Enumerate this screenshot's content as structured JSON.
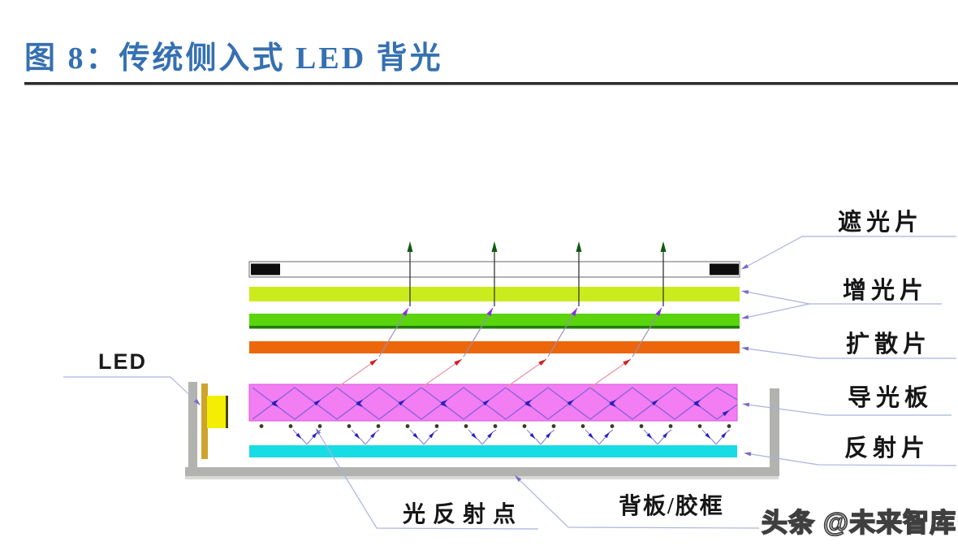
{
  "title": {
    "text": "图 8：传统侧入式 LED 背光"
  },
  "watermark": {
    "text": "头条 @未来智库"
  },
  "diagram": {
    "led_label": "LED",
    "side_labels": [
      {
        "id": "shading",
        "text": "遮光片"
      },
      {
        "id": "brightness",
        "text": "增光片"
      },
      {
        "id": "diffuser",
        "text": "扩散片"
      },
      {
        "id": "lgp",
        "text": "导光板"
      },
      {
        "id": "reflector",
        "text": "反射片"
      }
    ],
    "bottom_labels": [
      {
        "id": "reflection-dots",
        "text": "光反射点"
      },
      {
        "id": "backplate-frame",
        "text": "背板/胶框"
      }
    ],
    "layers": [
      {
        "name": "遮光片",
        "type": "shading-sheet",
        "fill": "#fdfdfd",
        "accent": "#0d0d0d",
        "edge": "#999999"
      },
      {
        "name": "增光片",
        "type": "prism-film-upper",
        "fill": "#cbec1c"
      },
      {
        "name": "增光片",
        "type": "prism-film-lower",
        "fill": "#59d40d",
        "edge": "#1f7e04"
      },
      {
        "name": "扩散片",
        "type": "diffuser-sheet",
        "fill": "#ec670c"
      },
      {
        "name": "导光板",
        "type": "light-guide-plate",
        "fill": "#f37df3",
        "edge": "#d958d9"
      },
      {
        "name": "反射片",
        "type": "reflector-sheet",
        "fill": "#17dce4"
      }
    ],
    "colors": {
      "title_blue": "#3570b1",
      "frame_gray": "#b2b2af",
      "frame_gray_light": "#d9d9d6",
      "led_yellow": "#f3ee04",
      "led_edge": "#454500",
      "fpc_gold": "#cda42d",
      "leader_line": "#a9b3e0",
      "leader_arrow": "#7b68c8",
      "ray_up_line": "#2f3a2f",
      "ray_up_green": "#0f5a0f",
      "ray_mid_line": "#9c8fb8",
      "ray_mid_purple": "#8a2be2",
      "ray_low_line": "#e897a6",
      "ray_low_red": "#cf2020",
      "zigzag_line": "#8a63d8",
      "zigzag_blue": "#2a1fbf",
      "dot_color": "#3b3b20"
    },
    "ray_count": 4,
    "reflection_dot_count": 17
  }
}
